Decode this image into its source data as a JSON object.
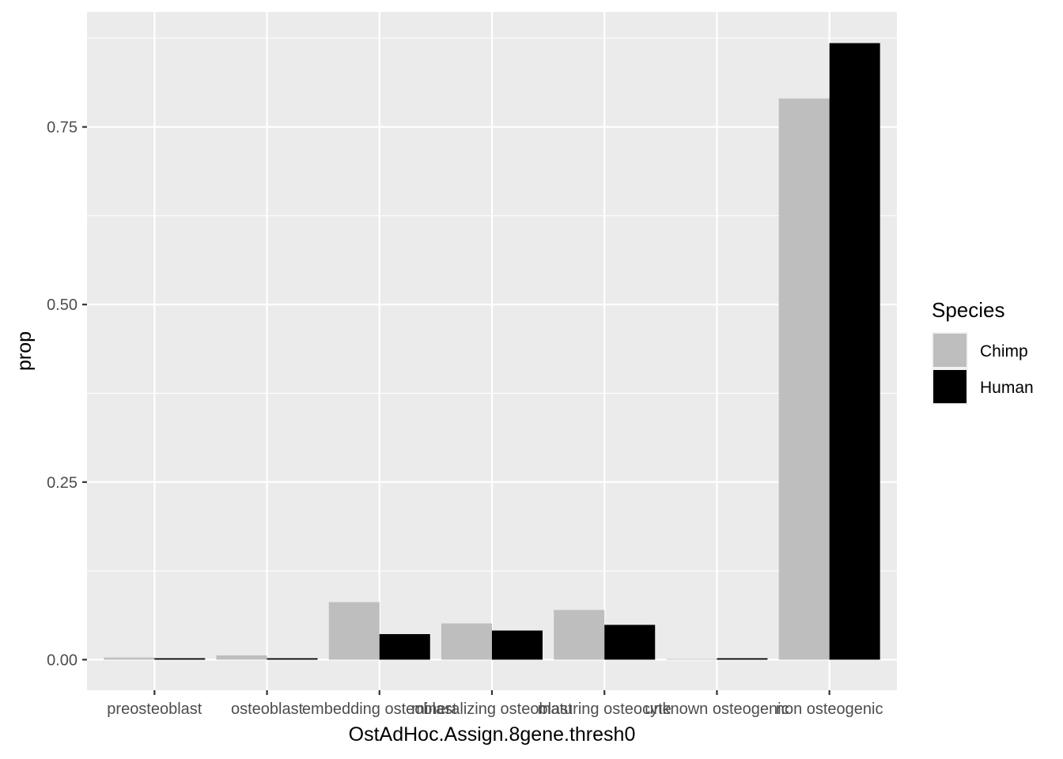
{
  "chart_data": {
    "type": "bar",
    "title": "",
    "xlabel": "OstAdHoc.Assign.8gene.thresh0",
    "ylabel": "prop",
    "categories": [
      "preosteoblast",
      "osteoblast",
      "embedding osteoblast",
      "mineralizing osteoblast",
      "maturing osteocyte",
      "unknown osteogenic",
      "non osteogenic"
    ],
    "series": [
      {
        "name": "Chimp",
        "color": "#bebebe",
        "values": [
          0.003,
          0.006,
          0.081,
          0.051,
          0.07,
          0.001,
          0.79
        ]
      },
      {
        "name": "Human",
        "color": "#000000",
        "values": [
          0.002,
          0.002,
          0.036,
          0.041,
          0.049,
          0.002,
          0.868
        ]
      }
    ],
    "ylim": [
      -0.043,
      0.912
    ],
    "yticks": [
      0.0,
      0.25,
      0.5,
      0.75
    ],
    "ytick_labels": [
      "0.00",
      "0.25",
      "0.50",
      "0.75"
    ],
    "grid": true,
    "legend": {
      "title": "Species",
      "position": "right"
    }
  }
}
